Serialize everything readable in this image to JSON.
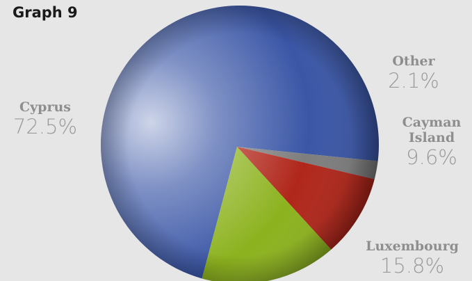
{
  "chart_data": {
    "type": "pie",
    "title": "Graph 9",
    "slices": [
      {
        "name": "Cyprus",
        "value": 72.5,
        "label": "72.5%",
        "color": "#3a56a6"
      },
      {
        "name": "Other",
        "value": 2.1,
        "label": "2.1%",
        "color": "#7d7d7d"
      },
      {
        "name": "Cayman Island",
        "name_lines": [
          "Cayman",
          "Island"
        ],
        "value": 9.6,
        "label": "9.6%",
        "color": "#b0261a"
      },
      {
        "name": "Luxembourg",
        "value": 15.8,
        "label": "15.8%",
        "color": "#8cb21e"
      }
    ]
  }
}
